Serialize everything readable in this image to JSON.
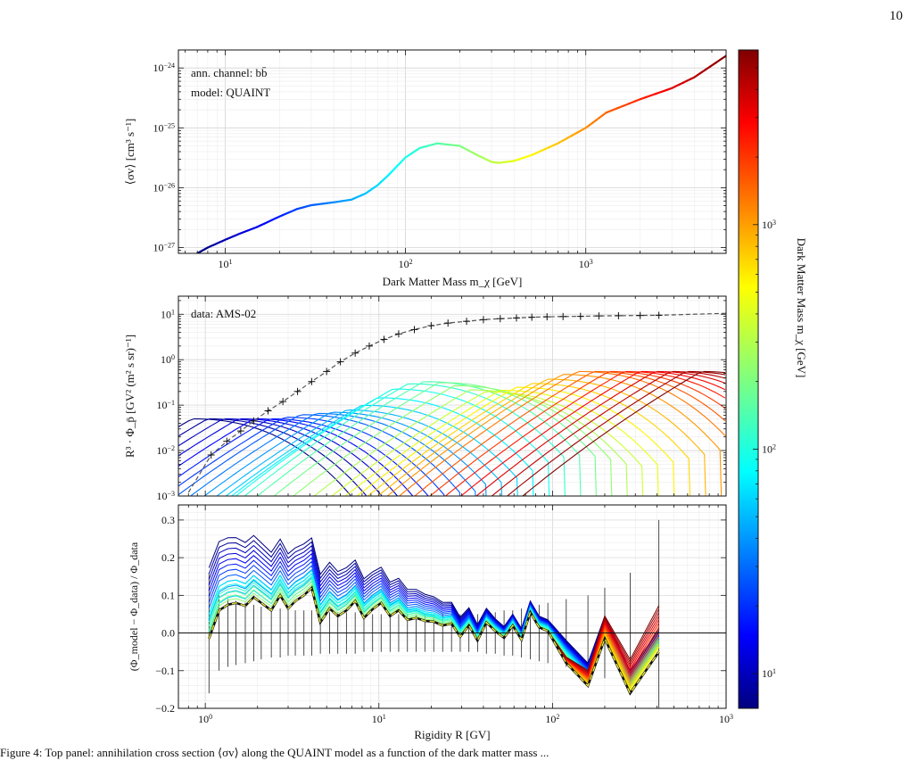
{
  "page_number": "10",
  "caption_text": "Figure 4: Top panel: annihilation cross section ⟨σv⟩ along the QUAINT model as a function of the dark matter mass ...",
  "chart_data": [
    {
      "type": "line",
      "panel": "cross-section",
      "xlabel": "Dark Matter Mass m_χ [GeV]",
      "ylabel": "⟨σv⟩ [cm³ s⁻¹]",
      "xscale": "log",
      "yscale": "log",
      "xlim": [
        5.5,
        6000
      ],
      "ylim": [
        8e-28,
        2e-24
      ],
      "x_ticks": [
        "10^1",
        "10^2",
        "10^3"
      ],
      "y_ticks": [
        "10^-27",
        "10^-26",
        "10^-25",
        "10^-24"
      ],
      "annotations": [
        "ann. channel: bb̄",
        "model: QUAINT"
      ],
      "grid": true,
      "series": [
        {
          "x": [
            7,
            8,
            10,
            12,
            15,
            20,
            25,
            30,
            40,
            50,
            60,
            70,
            80,
            100,
            120,
            150,
            200,
            250,
            300,
            330,
            400,
            500,
            700,
            1000,
            1300,
            2000,
            3000,
            4000,
            6000
          ],
          "y": [
            8e-28,
            1e-27,
            1.35e-27,
            1.7e-27,
            2.2e-27,
            3.3e-27,
            4.4e-27,
            5.1e-27,
            5.7e-27,
            6.3e-27,
            8e-27,
            1.1e-26,
            1.6e-26,
            3.2e-26,
            4.6e-26,
            5.5e-26,
            5e-26,
            3.5e-26,
            2.7e-26,
            2.6e-26,
            2.8e-26,
            3.5e-26,
            5.5e-26,
            1e-25,
            1.8e-25,
            3e-25,
            4.6e-25,
            7e-25,
            1.6e-24
          ]
        }
      ]
    },
    {
      "type": "line",
      "panel": "flux",
      "xlabel": "",
      "ylabel": "R³ · Φ_p̄ [GV² (m² s sr)⁻¹]",
      "xscale": "log",
      "yscale": "log",
      "xlim": [
        0.7,
        1000
      ],
      "ylim": [
        0.001,
        25
      ],
      "y_ticks": [
        "10^-3",
        "10^-2",
        "10^-1",
        "10^0",
        "10^1"
      ],
      "annotations": [
        "data: AMS-02"
      ],
      "grid": true,
      "data_points": {
        "x": [
          1.08,
          1.33,
          1.6,
          1.9,
          2.3,
          2.8,
          3.4,
          4.1,
          5.0,
          6.0,
          7.3,
          8.8,
          10.7,
          13,
          16,
          20,
          25,
          32,
          40,
          50,
          62,
          76,
          93,
          115,
          145,
          185,
          240,
          320,
          410
        ],
        "y": [
          0.008,
          0.016,
          0.027,
          0.045,
          0.075,
          0.12,
          0.2,
          0.33,
          0.55,
          0.9,
          1.4,
          2.0,
          2.8,
          3.7,
          4.6,
          5.6,
          6.4,
          7.0,
          7.6,
          8.0,
          8.3,
          8.6,
          8.8,
          8.9,
          9.0,
          9.2,
          9.3,
          9.4,
          9.5
        ]
      },
      "background_fit_end": {
        "x": [
          1000
        ],
        "y": [
          10.5
        ]
      },
      "mass_series_count": 34,
      "mass_range_GeV": [
        7,
        6000
      ]
    },
    {
      "type": "line",
      "panel": "residuals",
      "xlabel": "Rigidity R [GV]",
      "ylabel": "(Φ_model − Φ_data) / Φ_data",
      "xscale": "log",
      "xlim": [
        0.7,
        1000
      ],
      "ylim": [
        -0.2,
        0.34
      ],
      "x_ticks": [
        "10^0",
        "10^1",
        "10^2",
        "10^3"
      ],
      "y_ticks": [
        "−0.2",
        "−0.1",
        "0.0",
        "0.1",
        "0.2",
        "0.3"
      ],
      "grid": true,
      "best_fit": {
        "x": [
          1.05,
          1.2,
          1.35,
          1.5,
          1.7,
          1.9,
          2.1,
          2.4,
          2.7,
          3.0,
          3.3,
          3.7,
          4.1,
          4.6,
          5.2,
          5.8,
          6.5,
          7.3,
          8.2,
          9.2,
          10.3,
          11.6,
          13,
          14.6,
          16.4,
          18.4,
          20.7,
          23.3,
          26.2,
          29.4,
          33,
          37,
          41.6,
          46.8,
          52.6,
          59,
          66.3,
          74.5,
          83.7,
          94,
          120,
          160,
          200,
          280,
          410
        ],
        "y": [
          -0.015,
          0.06,
          0.075,
          0.08,
          0.072,
          0.095,
          0.08,
          0.06,
          0.1,
          0.065,
          0.085,
          0.1,
          0.12,
          0.028,
          0.065,
          0.045,
          0.06,
          0.085,
          0.04,
          0.063,
          0.08,
          0.045,
          0.06,
          0.035,
          0.04,
          0.032,
          0.03,
          0.02,
          0.025,
          -0.01,
          0.02,
          -0.02,
          0.028,
          0.005,
          -0.013,
          0.02,
          -0.018,
          0.055,
          0.015,
          0.005,
          -0.08,
          -0.14,
          -0.015,
          -0.16,
          -0.05
        ]
      },
      "error_bar_halfwidth": {
        "x": [
          1.05,
          1.2,
          1.35,
          1.5,
          1.7,
          1.9,
          2.1,
          2.4,
          2.7,
          3.0,
          3.3,
          3.7,
          4.1,
          4.6,
          5.2,
          5.8,
          6.5,
          7.3,
          8.2,
          9.2,
          10.3,
          11.6,
          13,
          14.6,
          16.4,
          18.4,
          20.7,
          23.3,
          26.2,
          29.4,
          33,
          37,
          41.6,
          46.8,
          52.6,
          59,
          66.3,
          74.5,
          83.7,
          94,
          120,
          160,
          200,
          280,
          410
        ],
        "y": [
          0.16,
          0.1,
          0.09,
          0.085,
          0.08,
          0.075,
          0.07,
          0.065,
          0.065,
          0.06,
          0.06,
          0.06,
          0.06,
          0.055,
          0.055,
          0.055,
          0.055,
          0.055,
          0.05,
          0.05,
          0.05,
          0.05,
          0.05,
          0.05,
          0.05,
          0.05,
          0.05,
          0.05,
          0.05,
          0.05,
          0.05,
          0.05,
          0.055,
          0.055,
          0.06,
          0.06,
          0.065,
          0.07,
          0.075,
          0.08,
          0.09,
          0.1,
          0.12,
          0.16,
          0.3
        ]
      }
    }
  ],
  "colorbar": {
    "label": "Dark Matter Mass m_χ [GeV]",
    "scale": "log",
    "range": [
      7,
      6000
    ],
    "ticks": [
      "10^1",
      "10^2",
      "10^3"
    ],
    "colormap": "jet"
  }
}
